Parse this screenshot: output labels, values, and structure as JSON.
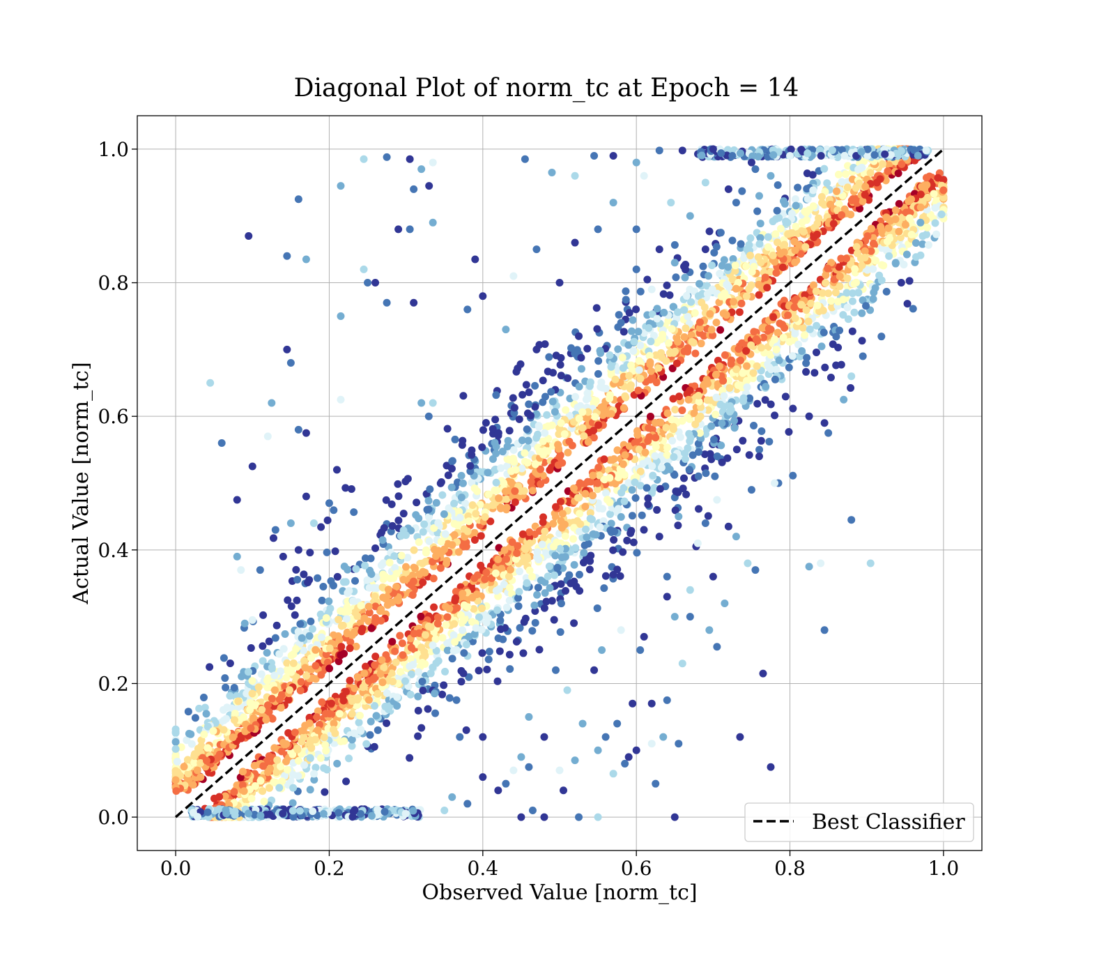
{
  "chart_data": {
    "type": "scatter",
    "title": "Diagonal Plot of norm_tc at Epoch = 14",
    "xlabel": "Observed Value [norm_tc]",
    "ylabel": "Actual Value [norm_tc]",
    "xlim": [
      -0.05,
      1.05
    ],
    "ylim": [
      -0.05,
      1.05
    ],
    "xticks": [
      "0.0",
      "0.2",
      "0.4",
      "0.6",
      "0.8",
      "1.0"
    ],
    "yticks": [
      "0.0",
      "0.2",
      "0.4",
      "0.6",
      "0.8",
      "1.0"
    ],
    "grid": true,
    "legend": {
      "position": "lower-right",
      "entries": [
        {
          "label": "Best Classifier",
          "style": "black dashed line"
        }
      ]
    },
    "reference_line": {
      "label": "Best Classifier",
      "x": [
        0.0,
        1.0
      ],
      "y": [
        0.0,
        1.0
      ],
      "color": "#000000",
      "dash": true
    },
    "colormap": [
      "#313695",
      "#4575b4",
      "#74add1",
      "#abd9e9",
      "#e0f3f8",
      "#ffffbf",
      "#fee090",
      "#fdae61",
      "#f46d43",
      "#d73027",
      "#a50026"
    ],
    "points": [
      {
        "x": 0.095,
        "y": 0.87
      },
      {
        "x": 0.145,
        "y": 0.84
      },
      {
        "x": 0.17,
        "y": 0.835
      },
      {
        "x": 0.045,
        "y": 0.65
      },
      {
        "x": 0.15,
        "y": 0.68
      },
      {
        "x": 0.145,
        "y": 0.7
      },
      {
        "x": 0.125,
        "y": 0.62
      },
      {
        "x": 0.12,
        "y": 0.57
      },
      {
        "x": 0.06,
        "y": 0.56
      },
      {
        "x": 0.08,
        "y": 0.475
      },
      {
        "x": 0.1,
        "y": 0.525
      },
      {
        "x": 0.16,
        "y": 0.925
      },
      {
        "x": 0.215,
        "y": 0.945
      },
      {
        "x": 0.245,
        "y": 0.985
      },
      {
        "x": 0.275,
        "y": 0.988
      },
      {
        "x": 0.305,
        "y": 0.985
      },
      {
        "x": 0.32,
        "y": 0.97
      },
      {
        "x": 0.335,
        "y": 0.98
      },
      {
        "x": 0.31,
        "y": 0.94
      },
      {
        "x": 0.33,
        "y": 0.945
      },
      {
        "x": 0.29,
        "y": 0.88
      },
      {
        "x": 0.305,
        "y": 0.88
      },
      {
        "x": 0.335,
        "y": 0.89
      },
      {
        "x": 0.245,
        "y": 0.82
      },
      {
        "x": 0.25,
        "y": 0.8
      },
      {
        "x": 0.26,
        "y": 0.8
      },
      {
        "x": 0.215,
        "y": 0.75
      },
      {
        "x": 0.215,
        "y": 0.625
      },
      {
        "x": 0.275,
        "y": 0.77
      },
      {
        "x": 0.31,
        "y": 0.77
      },
      {
        "x": 0.39,
        "y": 0.835
      },
      {
        "x": 0.455,
        "y": 0.985
      },
      {
        "x": 0.49,
        "y": 0.965
      },
      {
        "x": 0.52,
        "y": 0.96
      },
      {
        "x": 0.545,
        "y": 0.99
      },
      {
        "x": 0.57,
        "y": 0.99
      },
      {
        "x": 0.6,
        "y": 0.98
      },
      {
        "x": 0.61,
        "y": 0.96
      },
      {
        "x": 0.63,
        "y": 0.998
      },
      {
        "x": 0.66,
        "y": 0.998
      },
      {
        "x": 0.7,
        "y": 1.0
      },
      {
        "x": 0.755,
        "y": 0.97
      },
      {
        "x": 0.32,
        "y": 0.62
      },
      {
        "x": 0.335,
        "y": 0.62
      },
      {
        "x": 0.38,
        "y": 0.76
      },
      {
        "x": 0.4,
        "y": 0.78
      },
      {
        "x": 0.43,
        "y": 0.73
      },
      {
        "x": 0.44,
        "y": 0.81
      },
      {
        "x": 0.47,
        "y": 0.85
      },
      {
        "x": 0.5,
        "y": 0.8
      },
      {
        "x": 0.52,
        "y": 0.86
      },
      {
        "x": 0.55,
        "y": 0.88
      },
      {
        "x": 0.57,
        "y": 0.92
      },
      {
        "x": 0.645,
        "y": 0.92
      },
      {
        "x": 0.6,
        "y": 0.88
      },
      {
        "x": 0.63,
        "y": 0.85
      },
      {
        "x": 0.65,
        "y": 0.83
      },
      {
        "x": 0.62,
        "y": 0.79
      },
      {
        "x": 0.58,
        "y": 0.74
      },
      {
        "x": 0.525,
        "y": 0.72
      },
      {
        "x": 0.47,
        "y": 0.7
      },
      {
        "x": 0.6,
        "y": 0.82
      },
      {
        "x": 0.67,
        "y": 0.9
      },
      {
        "x": 0.69,
        "y": 0.95
      },
      {
        "x": 0.725,
        "y": 0.99
      },
      {
        "x": 0.75,
        "y": 0.98
      },
      {
        "x": 0.775,
        "y": 0.96
      },
      {
        "x": 0.8,
        "y": 0.99
      },
      {
        "x": 0.71,
        "y": 0.875
      },
      {
        "x": 0.69,
        "y": 0.85
      },
      {
        "x": 0.72,
        "y": 0.94
      },
      {
        "x": 0.73,
        "y": 0.92
      },
      {
        "x": 0.76,
        "y": 0.93
      },
      {
        "x": 0.905,
        "y": 0.38
      },
      {
        "x": 0.845,
        "y": 0.28
      },
      {
        "x": 0.765,
        "y": 0.215
      },
      {
        "x": 0.825,
        "y": 0.375
      },
      {
        "x": 0.84,
        "y": 0.38
      },
      {
        "x": 0.88,
        "y": 0.445
      },
      {
        "x": 0.775,
        "y": 0.075
      },
      {
        "x": 0.735,
        "y": 0.12
      },
      {
        "x": 0.705,
        "y": 0.255
      },
      {
        "x": 0.715,
        "y": 0.32
      },
      {
        "x": 0.745,
        "y": 0.38
      },
      {
        "x": 0.755,
        "y": 0.37
      },
      {
        "x": 0.72,
        "y": 0.435
      },
      {
        "x": 0.73,
        "y": 0.42
      },
      {
        "x": 0.705,
        "y": 0.475
      },
      {
        "x": 0.785,
        "y": 0.5
      },
      {
        "x": 0.825,
        "y": 0.6
      },
      {
        "x": 0.845,
        "y": 0.59
      },
      {
        "x": 0.85,
        "y": 0.575
      },
      {
        "x": 0.87,
        "y": 0.625
      },
      {
        "x": 0.88,
        "y": 0.66
      },
      {
        "x": 0.895,
        "y": 0.69
      },
      {
        "x": 0.945,
        "y": 0.8
      },
      {
        "x": 0.97,
        "y": 0.89
      },
      {
        "x": 0.78,
        "y": 0.5
      },
      {
        "x": 0.75,
        "y": 0.49
      },
      {
        "x": 0.76,
        "y": 0.54
      },
      {
        "x": 0.7,
        "y": 0.36
      },
      {
        "x": 0.67,
        "y": 0.3
      },
      {
        "x": 0.695,
        "y": 0.28
      },
      {
        "x": 0.66,
        "y": 0.23
      },
      {
        "x": 0.655,
        "y": 0.11
      },
      {
        "x": 0.65,
        "y": 0.0
      },
      {
        "x": 0.635,
        "y": 0.12
      },
      {
        "x": 0.62,
        "y": 0.11
      },
      {
        "x": 0.625,
        "y": 0.05
      },
      {
        "x": 0.6,
        "y": 0.1
      },
      {
        "x": 0.59,
        "y": 0.09
      },
      {
        "x": 0.56,
        "y": 0.12
      },
      {
        "x": 0.55,
        "y": 0.1
      },
      {
        "x": 0.55,
        "y": 0.0
      },
      {
        "x": 0.525,
        "y": 0.0
      },
      {
        "x": 0.505,
        "y": 0.04
      },
      {
        "x": 0.52,
        "y": 0.085
      },
      {
        "x": 0.5,
        "y": 0.07
      },
      {
        "x": 0.465,
        "y": 0.01
      },
      {
        "x": 0.45,
        "y": 0.0
      },
      {
        "x": 0.48,
        "y": 0.0
      },
      {
        "x": 0.46,
        "y": 0.075
      },
      {
        "x": 0.45,
        "y": 0.09
      },
      {
        "x": 0.57,
        "y": 0.065
      },
      {
        "x": 0.575,
        "y": 0.14
      },
      {
        "x": 0.545,
        "y": 0.22
      },
      {
        "x": 0.555,
        "y": 0.25
      },
      {
        "x": 0.58,
        "y": 0.28
      },
      {
        "x": 0.605,
        "y": 0.25
      },
      {
        "x": 0.61,
        "y": 0.27
      },
      {
        "x": 0.62,
        "y": 0.17
      },
      {
        "x": 0.64,
        "y": 0.175
      },
      {
        "x": 0.65,
        "y": 0.3
      },
      {
        "x": 0.67,
        "y": 0.34
      },
      {
        "x": 0.64,
        "y": 0.36
      },
      {
        "x": 0.63,
        "y": 0.42
      },
      {
        "x": 0.655,
        "y": 0.45
      },
      {
        "x": 0.68,
        "y": 0.41
      },
      {
        "x": 0.69,
        "y": 0.44
      },
      {
        "x": 0.64,
        "y": 0.33
      },
      {
        "x": 0.595,
        "y": 0.17
      },
      {
        "x": 0.585,
        "y": 0.08
      },
      {
        "x": 0.53,
        "y": 0.14
      },
      {
        "x": 0.51,
        "y": 0.19
      },
      {
        "x": 0.495,
        "y": 0.22
      },
      {
        "x": 0.48,
        "y": 0.12
      },
      {
        "x": 0.46,
        "y": 0.15
      },
      {
        "x": 0.44,
        "y": 0.07
      },
      {
        "x": 0.43,
        "y": 0.05
      },
      {
        "x": 0.42,
        "y": 0.04
      },
      {
        "x": 0.4,
        "y": 0.06
      },
      {
        "x": 0.38,
        "y": 0.02
      },
      {
        "x": 0.36,
        "y": 0.03
      },
      {
        "x": 0.35,
        "y": 0.01
      },
      {
        "x": 0.37,
        "y": 0.12
      },
      {
        "x": 0.4,
        "y": 0.12
      },
      {
        "x": 0.08,
        "y": 0.39
      },
      {
        "x": 0.085,
        "y": 0.37
      },
      {
        "x": 0.11,
        "y": 0.37
      },
      {
        "x": 0.14,
        "y": 0.39
      },
      {
        "x": 0.16,
        "y": 0.4
      },
      {
        "x": 0.13,
        "y": 0.43
      },
      {
        "x": 0.15,
        "y": 0.44
      },
      {
        "x": 0.18,
        "y": 0.44
      },
      {
        "x": 0.2,
        "y": 0.47
      },
      {
        "x": 0.17,
        "y": 0.48
      },
      {
        "x": 0.09,
        "y": 0.29
      },
      {
        "x": 0.1,
        "y": 0.295
      },
      {
        "x": 0.16,
        "y": 0.58
      },
      {
        "x": 0.17,
        "y": 0.575
      },
      {
        "x": 0.21,
        "y": 0.52
      }
    ]
  }
}
